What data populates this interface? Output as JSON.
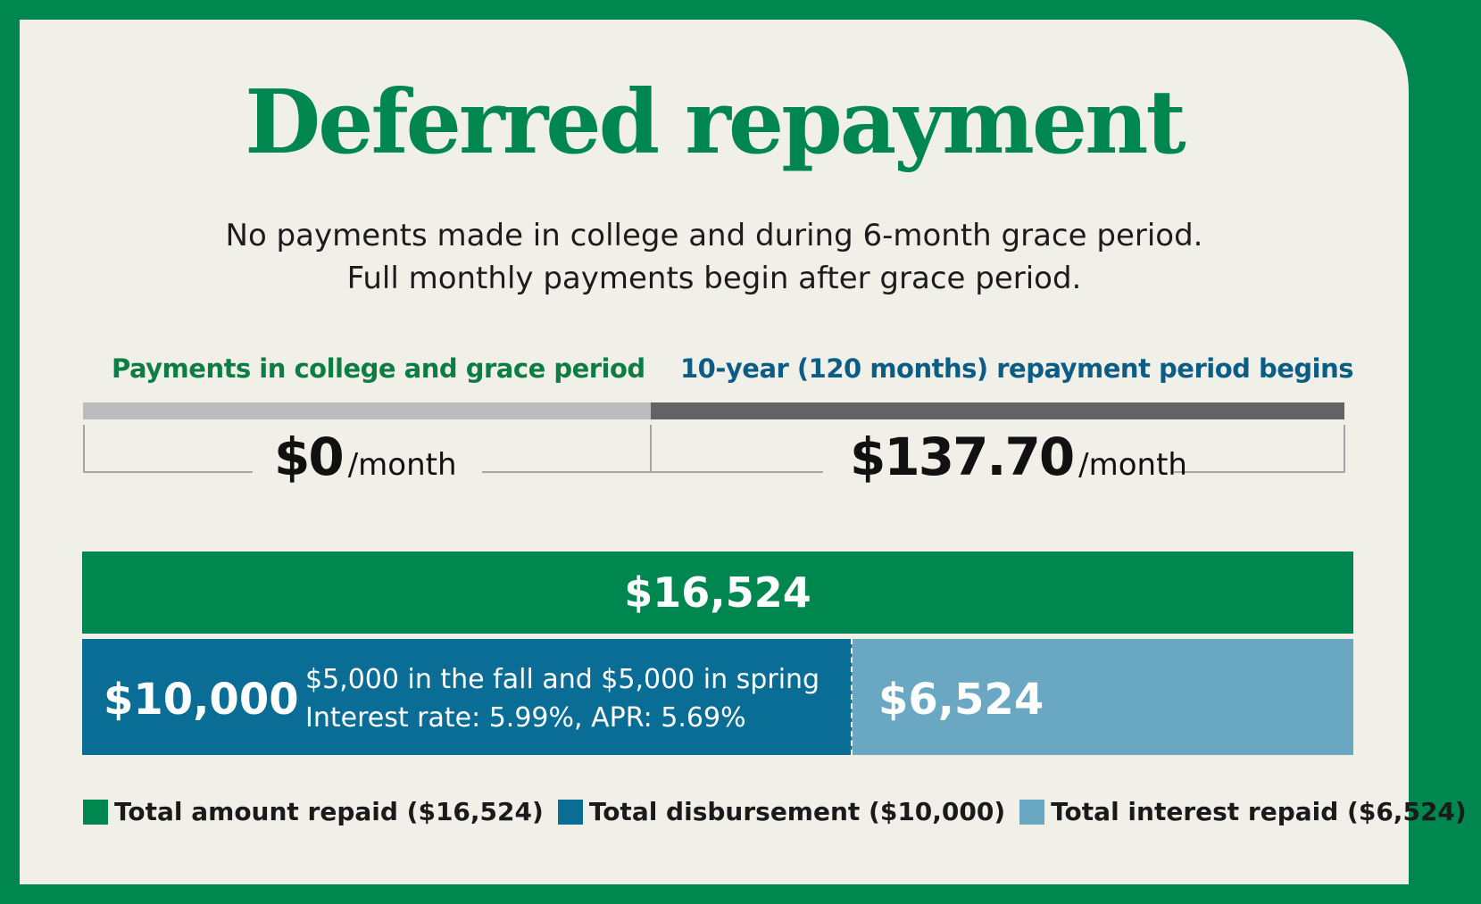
{
  "title": "Deferred repayment",
  "subtitle": {
    "line1": "No payments made in college and during 6-month grace period.",
    "line2": "Full monthly payments begin after grace period."
  },
  "phases": [
    {
      "label": "Payments in college and grace period",
      "amount": "$0",
      "unit": "/month",
      "color": "#bcbcbc"
    },
    {
      "label": "10-year (120 months) repayment period begins",
      "amount": "$137.70",
      "unit": "/month",
      "color": "#636363"
    }
  ],
  "totals": {
    "total_label": "$16,524",
    "disbursement_label": "$10,000",
    "interest_label": "$6,524",
    "note_line1": "$5,000 in the fall and $5,000 in spring",
    "note_line2": "Interest rate: 5.99%,  APR: 5.69%"
  },
  "legend": [
    {
      "label": "Total amount repaid ($16,524)",
      "color": "#00874f"
    },
    {
      "label": "Total disbursement ($10,000)",
      "color": "#0a6d96"
    },
    {
      "label": "Total interest repaid ($6,524)",
      "color": "#69a7c2"
    }
  ],
  "chart_data": {
    "type": "bar",
    "title": "Deferred repayment",
    "series": [
      {
        "name": "Total amount repaid",
        "values": [
          16524
        ]
      },
      {
        "name": "Total disbursement",
        "values": [
          10000
        ]
      },
      {
        "name": "Total interest repaid",
        "values": [
          6524
        ]
      }
    ],
    "monthly_payments": [
      {
        "period": "Payments in college and grace period",
        "value": 0
      },
      {
        "period": "10-year (120 months) repayment period begins",
        "value": 137.7
      }
    ],
    "colors": {
      "total": "#00874f",
      "disbursement": "#0a6d96",
      "interest": "#69a7c2"
    }
  }
}
